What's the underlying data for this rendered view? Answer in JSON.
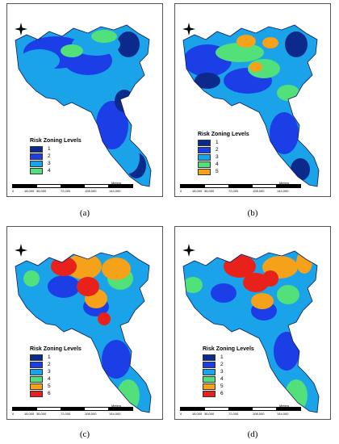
{
  "panels": [
    {
      "caption": "(a)",
      "legend_title": "Risk Zoning Levels",
      "levels": [
        {
          "label": "1",
          "color": "#0b2a8c"
        },
        {
          "label": "2",
          "color": "#1c3ee6"
        },
        {
          "label": "3",
          "color": "#1aa3e8"
        },
        {
          "label": "4",
          "color": "#52e07a"
        }
      ]
    },
    {
      "caption": "(b)",
      "legend_title": "Risk Zoning Levels",
      "levels": [
        {
          "label": "1",
          "color": "#0b2a8c"
        },
        {
          "label": "2",
          "color": "#1c3ee6"
        },
        {
          "label": "3",
          "color": "#1aa3e8"
        },
        {
          "label": "4",
          "color": "#52e07a"
        },
        {
          "label": "5",
          "color": "#f5a11a"
        }
      ]
    },
    {
      "caption": "(c)",
      "legend_title": "Risk Zoning Levels",
      "levels": [
        {
          "label": "1",
          "color": "#0b2a8c"
        },
        {
          "label": "2",
          "color": "#1c3ee6"
        },
        {
          "label": "3",
          "color": "#1aa3e8"
        },
        {
          "label": "4",
          "color": "#52e07a"
        },
        {
          "label": "5",
          "color": "#f5a11a"
        },
        {
          "label": "6",
          "color": "#e8221a"
        }
      ]
    },
    {
      "caption": "(d)",
      "legend_title": "Risk Zoning Levels",
      "levels": [
        {
          "label": "1",
          "color": "#0b2a8c"
        },
        {
          "label": "2",
          "color": "#1c3ee6"
        },
        {
          "label": "3",
          "color": "#1aa3e8"
        },
        {
          "label": "4",
          "color": "#52e07a"
        },
        {
          "label": "5",
          "color": "#f5a11a"
        },
        {
          "label": "6",
          "color": "#e8221a"
        }
      ]
    }
  ],
  "scale_bar": {
    "ticks": [
      "0",
      "18,000",
      "36,000",
      "72,000",
      "108,000",
      "144,000"
    ],
    "unit": "Meters"
  },
  "north_arrow": {
    "n": "N",
    "s": "S",
    "e": "E",
    "w": "W"
  }
}
